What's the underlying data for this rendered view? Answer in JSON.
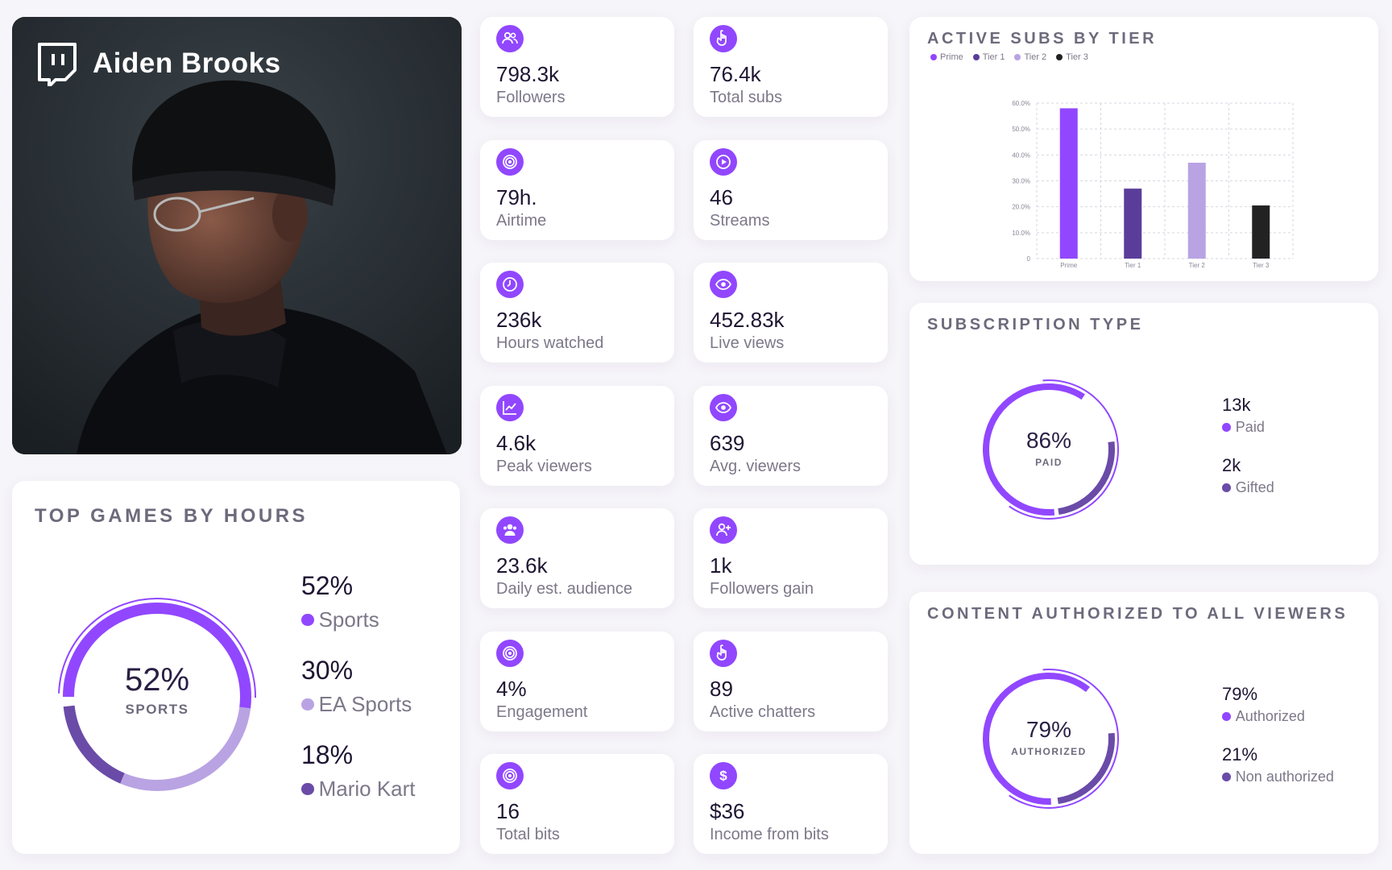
{
  "profile": {
    "name": "Aiden Brooks",
    "logo_icon": "twitch-logo-icon"
  },
  "stats": [
    {
      "value": "798.3k",
      "label": "Followers",
      "icon": "users-icon"
    },
    {
      "value": "76.4k",
      "label": "Total subs",
      "icon": "pointer-hand-icon"
    },
    {
      "value": "79h.",
      "label": "Airtime",
      "icon": "target-icon"
    },
    {
      "value": "46",
      "label": "Streams",
      "icon": "play-circle-icon"
    },
    {
      "value": "236k",
      "label": "Hours watched",
      "icon": "clock-icon"
    },
    {
      "value": "452.83k",
      "label": "Live views",
      "icon": "eye-icon"
    },
    {
      "value": "4.6k",
      "label": "Peak viewers",
      "icon": "trend-chart-icon"
    },
    {
      "value": "639",
      "label": "Avg. viewers",
      "icon": "eye-icon"
    },
    {
      "value": "23.6k",
      "label": "Daily est. audience",
      "icon": "audience-icon"
    },
    {
      "value": "1k",
      "label": "Followers gain",
      "icon": "user-plus-icon"
    },
    {
      "value": "4%",
      "label": "Engagement",
      "icon": "target-icon"
    },
    {
      "value": "89",
      "label": "Active chatters",
      "icon": "pointer-hand-icon"
    },
    {
      "value": "16",
      "label": "Total bits",
      "icon": "target-icon"
    },
    {
      "value": "$36",
      "label": "Income from bits",
      "icon": "dollar-icon"
    }
  ],
  "top_games": {
    "title": "TOP GAMES BY HOURS",
    "center_value": "52%",
    "center_label": "SPORTS",
    "items": [
      {
        "value": "52%",
        "label": "Sports",
        "color": "#9147ff"
      },
      {
        "value": "30%",
        "label": "EA Sports",
        "color": "#b9a3e3"
      },
      {
        "value": "18%",
        "label": "Mario Kart",
        "color": "#6a4ba8"
      }
    ]
  },
  "subs_by_tier": {
    "title": "ACTIVE SUBS BY TIER",
    "legend": [
      {
        "label": "Prime",
        "color": "#9147ff"
      },
      {
        "label": "Tier 1",
        "color": "#5a3d9a"
      },
      {
        "label": "Tier 2",
        "color": "#b9a3e3"
      },
      {
        "label": "Tier 3",
        "color": "#222222"
      }
    ]
  },
  "chart_data": {
    "type": "bar",
    "title": "ACTIVE SUBS BY TIER",
    "categories": [
      "Prime",
      "Tier 1",
      "Tier 2",
      "Tier 3"
    ],
    "values": [
      58.0,
      27.0,
      37.0,
      20.5
    ],
    "colors": [
      "#9147ff",
      "#5a3d9a",
      "#b9a3e3",
      "#222222"
    ],
    "ylim": [
      0,
      60
    ],
    "yticks": [
      "0",
      "10.0%",
      "20.0%",
      "30.0%",
      "40.0%",
      "50.0%",
      "60.0%"
    ],
    "grid": true
  },
  "subscription_type": {
    "title": "SUBSCRIPTION TYPE",
    "center_value": "86%",
    "center_label": "PAID",
    "items": [
      {
        "value": "13k",
        "label": "Paid",
        "color": "#9147ff"
      },
      {
        "value": "2k",
        "label": "Gifted",
        "color": "#6a4ba8"
      }
    ]
  },
  "content_authorized": {
    "title": "CONTENT AUTHORIZED TO ALL VIEWERS",
    "center_value": "79%",
    "center_label": "AUTHORIZED",
    "items": [
      {
        "value": "79%",
        "label": "Authorized",
        "color": "#9147ff"
      },
      {
        "value": "21%",
        "label": "Non authorized",
        "color": "#6a4ba8"
      }
    ]
  }
}
